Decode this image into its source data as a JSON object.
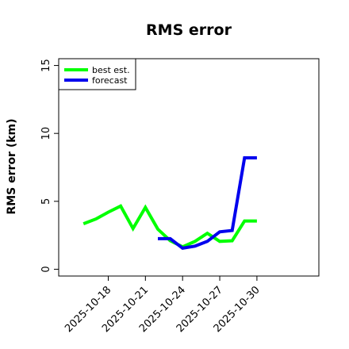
{
  "chart_data": {
    "type": "line",
    "title": "RMS error",
    "xlabel": "",
    "ylabel": "RMS error (km)",
    "x_type": "date",
    "xlim": [
      "2025-10-14",
      "2025-11-04"
    ],
    "ylim": [
      -0.5,
      15.5
    ],
    "x_ticks": [
      "2025-10-18",
      "2025-10-21",
      "2025-10-24",
      "2025-10-27",
      "2025-10-30"
    ],
    "y_ticks": [
      0,
      5,
      10,
      15
    ],
    "grid": false,
    "legend_position": "top-left",
    "series": [
      {
        "name": "best est.",
        "color": "#00ff00",
        "points": [
          [
            "2025-10-16",
            3.35
          ],
          [
            "2025-10-17",
            3.7
          ],
          [
            "2025-10-18",
            4.2
          ],
          [
            "2025-10-19",
            4.65
          ],
          [
            "2025-10-20",
            3.0
          ],
          [
            "2025-10-21",
            4.55
          ],
          [
            "2025-10-22",
            2.95
          ],
          [
            "2025-10-23",
            2.1
          ],
          [
            "2025-10-24",
            1.65
          ],
          [
            "2025-10-25",
            2.05
          ],
          [
            "2025-10-26",
            2.65
          ],
          [
            "2025-10-27",
            2.05
          ],
          [
            "2025-10-28",
            2.1
          ],
          [
            "2025-10-29",
            3.55
          ],
          [
            "2025-10-30",
            3.55
          ]
        ]
      },
      {
        "name": "forecast",
        "color": "#0000ee",
        "points": [
          [
            "2025-10-22",
            2.25
          ],
          [
            "2025-10-23",
            2.25
          ],
          [
            "2025-10-24",
            1.55
          ],
          [
            "2025-10-25",
            1.7
          ],
          [
            "2025-10-26",
            2.05
          ],
          [
            "2025-10-27",
            2.75
          ],
          [
            "2025-10-28",
            2.85
          ],
          [
            "2025-10-29",
            8.2
          ],
          [
            "2025-10-30",
            8.2
          ]
        ]
      }
    ]
  }
}
